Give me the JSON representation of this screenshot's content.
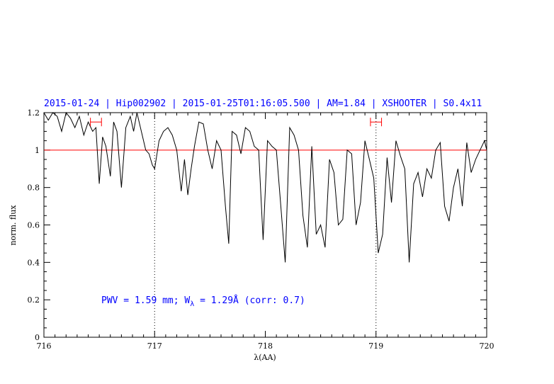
{
  "chart_data": {
    "type": "line",
    "title": "2015-01-24 | Hip002902 | 2015-01-25T01:16:05.500 | AM=1.84 | XSHOOTER | S0.4x11",
    "xlabel": "λ(AA)",
    "ylabel": "norm. flux",
    "xlim": [
      716,
      720
    ],
    "ylim": [
      0,
      1.2
    ],
    "x_ticks": [
      "716",
      "717",
      "718",
      "719",
      "720"
    ],
    "y_ticks": [
      "0",
      "0.2",
      "0.4",
      "0.6",
      "0.8",
      "1",
      "1.2"
    ],
    "reference_line": {
      "y": 1.0,
      "color": "#ff0000"
    },
    "vertical_markers": [
      717.0,
      719.0
    ],
    "error_bars": [
      {
        "x": 716.47,
        "y": 1.15,
        "xerr": 0.05,
        "color": "#ff0000"
      },
      {
        "x": 719.0,
        "y": 1.15,
        "xerr": 0.05,
        "color": "#ff0000"
      }
    ],
    "annotation": {
      "pwv": "PWV = 1.59 mm; W",
      "sub": "λ",
      "rest": " = 1.29Å (corr: 0.7)"
    },
    "series": [
      {
        "color": "#000000",
        "x": [
          716.0,
          716.04,
          716.08,
          716.12,
          716.16,
          716.2,
          716.24,
          716.28,
          716.32,
          716.36,
          716.4,
          716.44,
          716.47,
          716.5,
          716.53,
          716.56,
          716.6,
          716.63,
          716.66,
          716.7,
          716.74,
          716.78,
          716.81,
          716.84,
          716.88,
          716.92,
          716.95,
          716.98,
          717.0,
          717.04,
          717.08,
          717.12,
          717.16,
          717.2,
          717.24,
          717.27,
          717.3,
          717.33,
          717.36,
          717.4,
          717.44,
          717.48,
          717.52,
          717.56,
          717.6,
          717.64,
          717.67,
          717.7,
          717.74,
          717.78,
          717.82,
          717.86,
          717.9,
          717.94,
          717.98,
          718.02,
          718.06,
          718.1,
          718.14,
          718.18,
          718.22,
          718.26,
          718.3,
          718.34,
          718.38,
          718.42,
          718.46,
          718.5,
          718.54,
          718.58,
          718.62,
          718.66,
          718.7,
          718.74,
          718.78,
          718.82,
          718.86,
          718.9,
          718.94,
          718.98,
          719.02,
          719.06,
          719.1,
          719.14,
          719.18,
          719.22,
          719.26,
          719.3,
          719.34,
          719.38,
          719.42,
          719.46,
          719.5,
          719.54,
          719.58,
          719.62,
          719.66,
          719.7,
          719.74,
          719.78,
          719.82,
          719.86,
          719.9,
          719.94,
          719.98,
          720.0
        ],
        "y": [
          1.2,
          1.16,
          1.2,
          1.18,
          1.1,
          1.2,
          1.17,
          1.12,
          1.18,
          1.08,
          1.15,
          1.1,
          1.12,
          0.82,
          1.07,
          1.02,
          0.86,
          1.15,
          1.1,
          0.8,
          1.12,
          1.18,
          1.1,
          1.2,
          1.1,
          1.0,
          0.98,
          0.92,
          0.9,
          1.05,
          1.1,
          1.12,
          1.08,
          1.0,
          0.78,
          0.95,
          0.76,
          0.9,
          1.02,
          1.15,
          1.14,
          1.0,
          0.9,
          1.05,
          1.0,
          0.7,
          0.5,
          1.1,
          1.08,
          0.98,
          1.12,
          1.1,
          1.02,
          1.0,
          0.52,
          1.05,
          1.02,
          1.0,
          0.7,
          0.4,
          1.12,
          1.08,
          1.0,
          0.65,
          0.48,
          1.02,
          0.55,
          0.6,
          0.48,
          0.95,
          0.88,
          0.6,
          0.63,
          1.0,
          0.98,
          0.6,
          0.72,
          1.05,
          0.95,
          0.85,
          0.45,
          0.55,
          0.96,
          0.72,
          1.05,
          0.97,
          0.9,
          0.4,
          0.82,
          0.88,
          0.75,
          0.9,
          0.85,
          1.0,
          1.04,
          0.7,
          0.62,
          0.8,
          0.9,
          0.7,
          1.04,
          0.88,
          0.95,
          1.0,
          1.05,
          1.0
        ]
      }
    ]
  }
}
